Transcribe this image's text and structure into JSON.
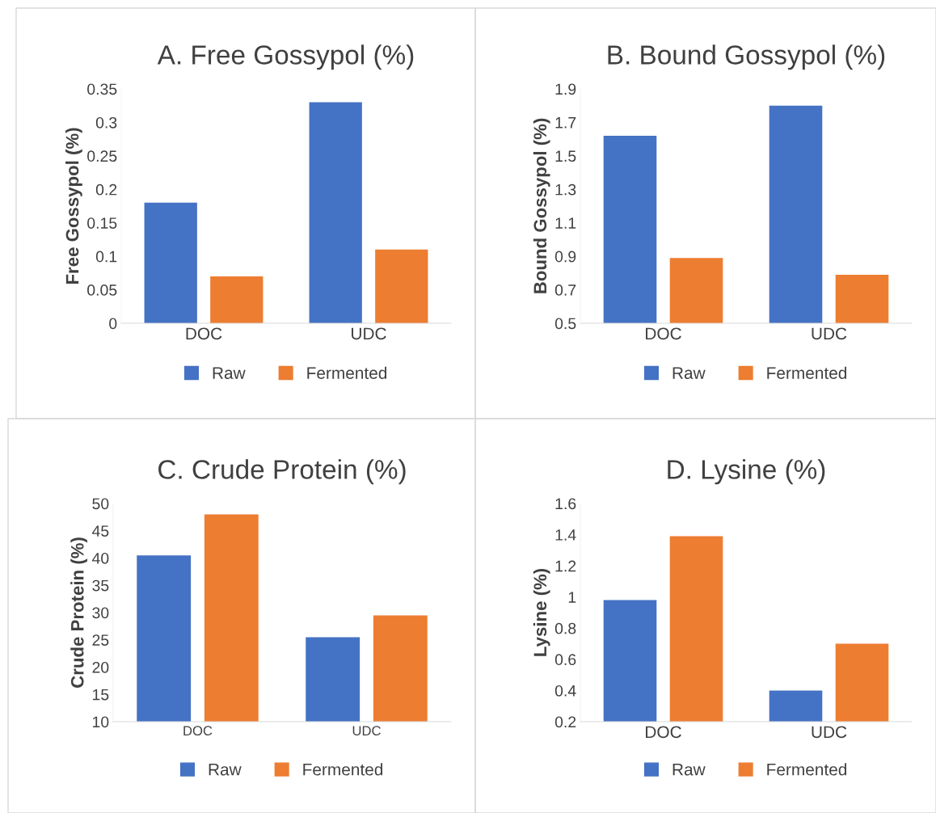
{
  "chart_data": [
    {
      "type": "bar",
      "title": "A. Free Gossypol (%)",
      "ylabel": "Free Gossypol (%)",
      "categories": [
        "DOC",
        "UDC"
      ],
      "series": [
        {
          "name": "Raw",
          "color": "#4472c4",
          "values": [
            0.18,
            0.33
          ]
        },
        {
          "name": "Fermented",
          "color": "#ed7d31",
          "values": [
            0.07,
            0.11
          ]
        }
      ],
      "ylim": [
        0,
        0.35
      ],
      "yticks": [
        0,
        0.05,
        0.1,
        0.15,
        0.2,
        0.25,
        0.3,
        0.35
      ],
      "grid": false,
      "legend": "bottom"
    },
    {
      "type": "bar",
      "title": "B. Bound Gossypol (%)",
      "ylabel": "Bound Gossypol (%)",
      "categories": [
        "DOC",
        "UDC"
      ],
      "series": [
        {
          "name": "Raw",
          "color": "#4472c4",
          "values": [
            1.62,
            1.8
          ]
        },
        {
          "name": "Fermented",
          "color": "#ed7d31",
          "values": [
            0.89,
            0.79
          ]
        }
      ],
      "ylim": [
        0.5,
        1.9
      ],
      "yticks": [
        0.5,
        0.7,
        0.9,
        1.1,
        1.3,
        1.5,
        1.7,
        1.9
      ],
      "grid": false,
      "legend": "bottom"
    },
    {
      "type": "bar",
      "title": "C. Crude Protein (%)",
      "ylabel": "Crude Protein (%)",
      "categories": [
        "DOC",
        "UDC"
      ],
      "series": [
        {
          "name": "Raw",
          "color": "#4472c4",
          "values": [
            40.5,
            25.5
          ]
        },
        {
          "name": "Fermented",
          "color": "#ed7d31",
          "values": [
            48,
            29.5
          ]
        }
      ],
      "ylim": [
        10,
        50
      ],
      "yticks": [
        10,
        15,
        20,
        25,
        30,
        35,
        40,
        45,
        50
      ],
      "grid": false,
      "legend": "bottom"
    },
    {
      "type": "bar",
      "title": "D. Lysine (%)",
      "ylabel": "Lysine (%)",
      "categories": [
        "DOC",
        "UDC"
      ],
      "series": [
        {
          "name": "Raw",
          "color": "#4472c4",
          "values": [
            0.98,
            0.4
          ]
        },
        {
          "name": "Fermented",
          "color": "#ed7d31",
          "values": [
            1.39,
            0.7
          ]
        }
      ],
      "ylim": [
        0.2,
        1.6
      ],
      "yticks": [
        0.2,
        0.4,
        0.6,
        0.8,
        1,
        1.2,
        1.4,
        1.6
      ],
      "grid": false,
      "legend": "bottom"
    }
  ]
}
